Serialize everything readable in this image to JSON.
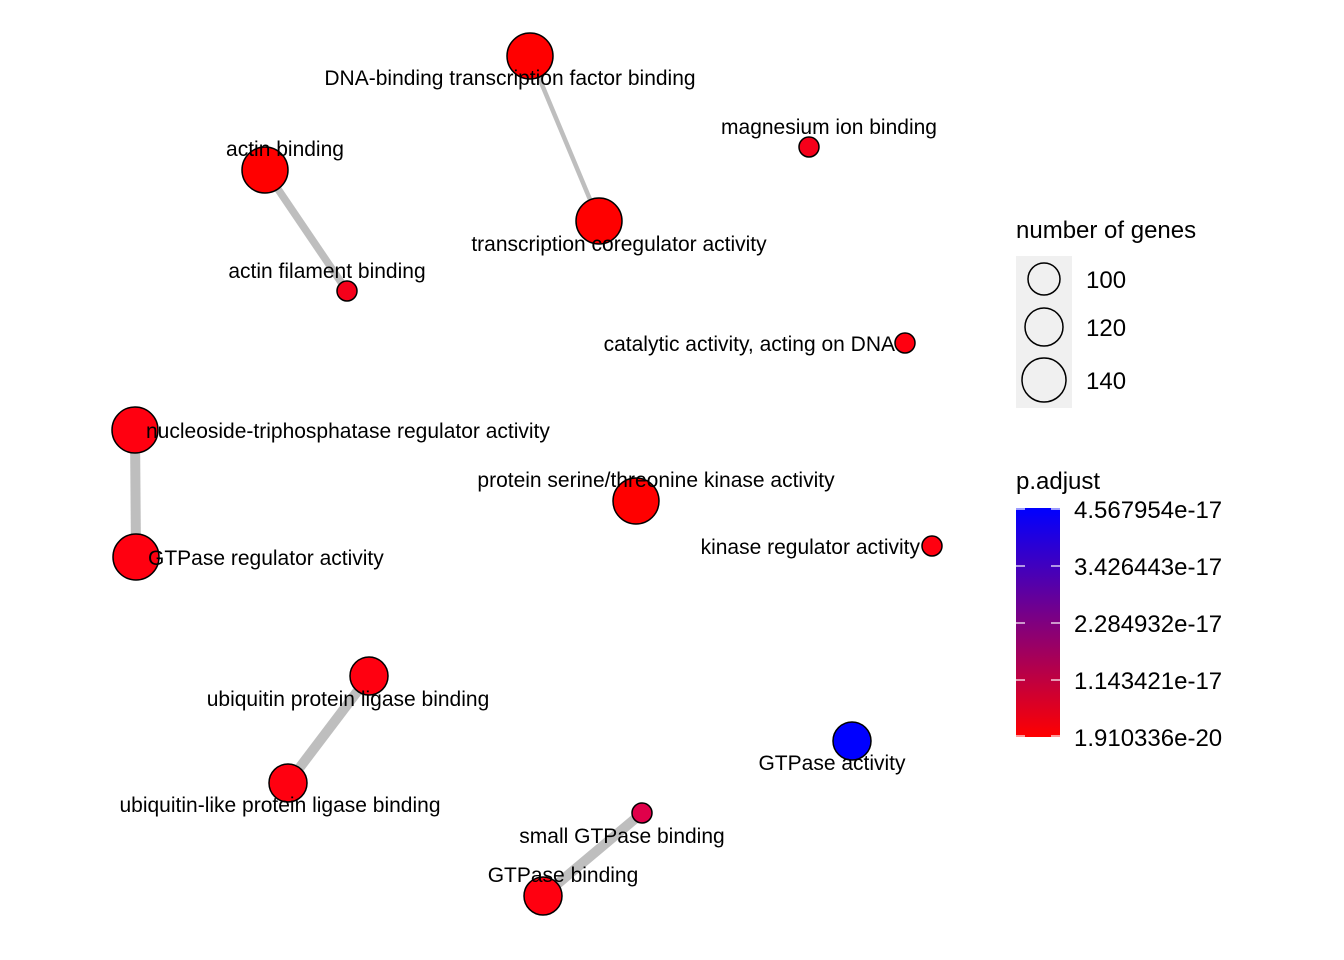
{
  "colors": {
    "low": "#FF0000",
    "high": "#0000FF",
    "edge": "#BEBEBE",
    "node_stroke": "#000000",
    "legend_key_bg": "#F0F0F0"
  },
  "nodes": [
    {
      "id": "dna-tf-binding",
      "label": "DNA-binding transcription factor binding",
      "color": "#FF0000",
      "size_rank": 3
    },
    {
      "id": "magnesium",
      "label": "magnesium ion binding",
      "color": "#F5001A",
      "size_rank": 1
    },
    {
      "id": "actin-binding",
      "label": "actin binding",
      "color": "#FF0000",
      "size_rank": 3
    },
    {
      "id": "transcription-coreg",
      "label": "transcription coregulator activity",
      "color": "#FF0000",
      "size_rank": 3
    },
    {
      "id": "actin-filament",
      "label": "actin filament binding",
      "color": "#F5001A",
      "size_rank": 1
    },
    {
      "id": "catalytic-dna",
      "label": "catalytic activity, acting on DNA",
      "color": "#FF0010",
      "size_rank": 1
    },
    {
      "id": "ntpase-reg",
      "label": "nucleoside-triphosphatase regulator activity",
      "color": "#FF0010",
      "size_rank": 3
    },
    {
      "id": "ser-thr-kinase",
      "label": "protein serine/threonine kinase activity",
      "color": "#FF0000",
      "size_rank": 3
    },
    {
      "id": "gtpase-reg",
      "label": "GTPase regulator activity",
      "color": "#FF0010",
      "size_rank": 3
    },
    {
      "id": "kinase-reg",
      "label": "kinase regulator activity",
      "color": "#FF0010",
      "size_rank": 1
    },
    {
      "id": "ubiquitin-ligase",
      "label": "ubiquitin protein ligase binding",
      "color": "#FF0010",
      "size_rank": 2
    },
    {
      "id": "gtpase-activity",
      "label": "GTPase activity",
      "color": "#0000FF",
      "size_rank": 2
    },
    {
      "id": "ubiquitin-like-ligase",
      "label": "ubiquitin-like protein ligase binding",
      "color": "#FF0010",
      "size_rank": 2
    },
    {
      "id": "small-gtpase",
      "label": "small GTPase binding",
      "color": "#E0004A",
      "size_rank": 1
    },
    {
      "id": "gtpase-binding",
      "label": "GTPase binding",
      "color": "#FF0010",
      "size_rank": 2
    }
  ],
  "edges": [
    {
      "source": "dna-tf-binding",
      "target": "transcription-coreg",
      "weight": 1
    },
    {
      "source": "actin-binding",
      "target": "actin-filament",
      "weight": 2
    },
    {
      "source": "ntpase-reg",
      "target": "gtpase-reg",
      "weight": 3
    },
    {
      "source": "ubiquitin-ligase",
      "target": "ubiquitin-like-ligase",
      "weight": 3
    },
    {
      "source": "small-gtpase",
      "target": "gtpase-binding",
      "weight": 3
    }
  ],
  "legend": {
    "size_title": "number of genes",
    "size_entries": [
      "100",
      "120",
      "140"
    ],
    "color_title": "p.adjust",
    "color_ticks": [
      "4.567954e-17",
      "3.426443e-17",
      "2.284932e-17",
      "1.143421e-17",
      "1.910336e-20"
    ]
  }
}
